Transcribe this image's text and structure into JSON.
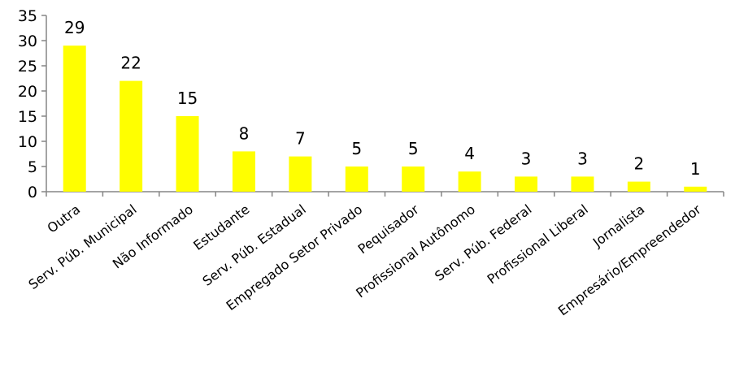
{
  "chart_data": {
    "type": "bar",
    "categories": [
      "Outra",
      "Serv. Púb. Municipal",
      "Não Informado",
      "Estudante",
      "Serv. Púb. Estadual",
      "Empregado Setor Privado",
      "Pequisador",
      "Profissional Autônomo",
      "Serv. Púb. Federal",
      "Profissional Liberal",
      "Jornalista",
      "Empresário/Empreendedor"
    ],
    "values": [
      29,
      22,
      15,
      8,
      7,
      5,
      5,
      4,
      3,
      3,
      2,
      1
    ],
    "yticks": [
      "0",
      "5",
      "10",
      "15",
      "20",
      "25",
      "30",
      "35"
    ],
    "ylim": [
      0,
      35
    ],
    "bar_color": "#ffff00",
    "axis_color": "#868686",
    "grid": false,
    "legend": "none"
  }
}
